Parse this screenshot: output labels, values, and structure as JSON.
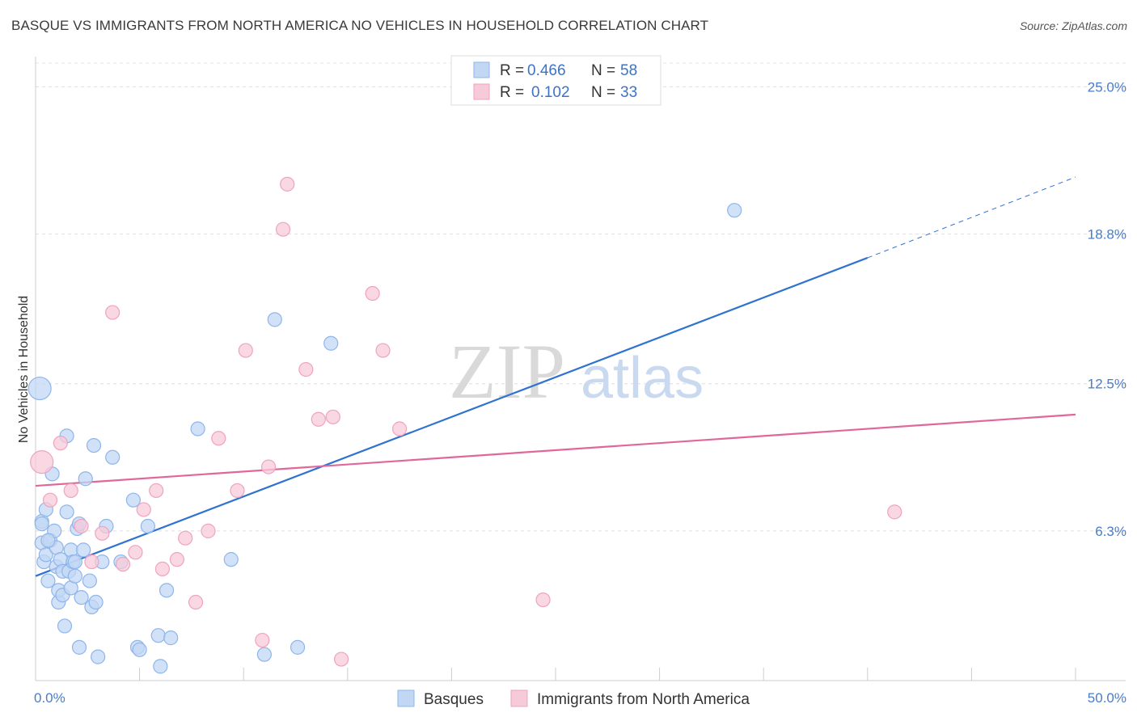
{
  "chart_data": {
    "type": "scatter",
    "title": "BASQUE VS IMMIGRANTS FROM NORTH AMERICA NO VEHICLES IN HOUSEHOLD CORRELATION CHART",
    "source": "Source: ZipAtlas.com",
    "ylabel": "No Vehicles in Household",
    "xlabel": "",
    "xlim": [
      0,
      50
    ],
    "ylim": [
      0,
      26
    ],
    "x_tick_labels": [
      "0.0%",
      "50.0%"
    ],
    "y_ticks": [
      6.3,
      12.5,
      18.8,
      25.0
    ],
    "y_tick_labels": [
      "6.3%",
      "12.5%",
      "18.8%",
      "25.0%"
    ],
    "watermark": {
      "zip": "ZIP",
      "atlas": "atlas"
    },
    "legend": {
      "rows": [
        {
          "r_label": "R =",
          "r_value": "0.466",
          "n_label": "N =",
          "n_value": "58"
        },
        {
          "r_label": "R =",
          "r_value": "0.102",
          "n_label": "N =",
          "n_value": "33"
        }
      ]
    },
    "series": [
      {
        "name": "Basques",
        "color": "#8fb5ea",
        "fill": "#c2d7f4",
        "line_color": "#2f72d0",
        "trend": {
          "x0": 0,
          "y0": 4.4,
          "x1": 40,
          "y1": 17.8,
          "dash_to_x": 50,
          "dash_to_y": 21.2
        },
        "points": [
          [
            0.2,
            12.3
          ],
          [
            0.3,
            6.7
          ],
          [
            0.3,
            5.8
          ],
          [
            0.4,
            5.0
          ],
          [
            0.5,
            7.2
          ],
          [
            0.5,
            5.3
          ],
          [
            0.6,
            4.2
          ],
          [
            0.7,
            5.9
          ],
          [
            0.8,
            8.7
          ],
          [
            0.9,
            6.3
          ],
          [
            1.0,
            5.6
          ],
          [
            1.0,
            4.8
          ],
          [
            1.1,
            3.3
          ],
          [
            1.1,
            3.8
          ],
          [
            1.2,
            5.1
          ],
          [
            1.3,
            4.6
          ],
          [
            1.3,
            3.6
          ],
          [
            1.4,
            2.3
          ],
          [
            1.5,
            10.3
          ],
          [
            1.5,
            7.1
          ],
          [
            1.6,
            4.6
          ],
          [
            1.7,
            5.5
          ],
          [
            1.7,
            3.9
          ],
          [
            1.8,
            5.0
          ],
          [
            1.9,
            4.4
          ],
          [
            2.0,
            6.4
          ],
          [
            2.1,
            6.6
          ],
          [
            2.1,
            1.4
          ],
          [
            2.2,
            3.5
          ],
          [
            2.3,
            5.5
          ],
          [
            2.4,
            8.5
          ],
          [
            2.6,
            4.2
          ],
          [
            2.7,
            3.1
          ],
          [
            2.8,
            9.9
          ],
          [
            2.9,
            3.3
          ],
          [
            3.0,
            1.0
          ],
          [
            3.2,
            5.0
          ],
          [
            3.4,
            6.5
          ],
          [
            3.7,
            9.4
          ],
          [
            4.1,
            5.0
          ],
          [
            4.7,
            7.6
          ],
          [
            4.9,
            1.4
          ],
          [
            5.0,
            1.3
          ],
          [
            5.4,
            6.5
          ],
          [
            5.9,
            1.9
          ],
          [
            6.0,
            0.6
          ],
          [
            6.3,
            3.8
          ],
          [
            6.5,
            1.8
          ],
          [
            7.8,
            10.6
          ],
          [
            9.4,
            5.1
          ],
          [
            11.0,
            1.1
          ],
          [
            11.5,
            15.2
          ],
          [
            12.6,
            1.4
          ],
          [
            14.2,
            14.2
          ],
          [
            33.6,
            19.8
          ],
          [
            0.3,
            6.6
          ],
          [
            1.9,
            5.0
          ],
          [
            0.6,
            5.9
          ]
        ],
        "big_point": [
          0.2,
          12.3
        ]
      },
      {
        "name": "Immigrants from North America",
        "color": "#f0a3bd",
        "fill": "#f7cad9",
        "line_color": "#e0679a",
        "trend": {
          "x0": 0,
          "y0": 8.2,
          "x1": 50,
          "y1": 11.2
        },
        "points": [
          [
            0.3,
            9.2
          ],
          [
            0.7,
            7.6
          ],
          [
            1.2,
            10.0
          ],
          [
            1.7,
            8.0
          ],
          [
            2.2,
            6.5
          ],
          [
            2.7,
            5.0
          ],
          [
            3.2,
            6.2
          ],
          [
            3.7,
            15.5
          ],
          [
            4.2,
            4.9
          ],
          [
            4.8,
            5.4
          ],
          [
            5.2,
            7.2
          ],
          [
            5.8,
            8.0
          ],
          [
            6.1,
            4.7
          ],
          [
            6.8,
            5.1
          ],
          [
            7.2,
            6.0
          ],
          [
            7.7,
            3.3
          ],
          [
            8.3,
            6.3
          ],
          [
            8.8,
            10.2
          ],
          [
            9.7,
            8.0
          ],
          [
            10.1,
            13.9
          ],
          [
            10.9,
            1.7
          ],
          [
            11.2,
            9.0
          ],
          [
            11.9,
            19.0
          ],
          [
            12.1,
            20.9
          ],
          [
            13.0,
            13.1
          ],
          [
            13.6,
            11.0
          ],
          [
            14.3,
            11.1
          ],
          [
            14.7,
            0.9
          ],
          [
            16.2,
            16.3
          ],
          [
            16.7,
            13.9
          ],
          [
            17.5,
            10.6
          ],
          [
            24.4,
            3.4
          ],
          [
            41.3,
            7.1
          ]
        ],
        "big_point": [
          0.3,
          9.2
        ]
      }
    ]
  }
}
